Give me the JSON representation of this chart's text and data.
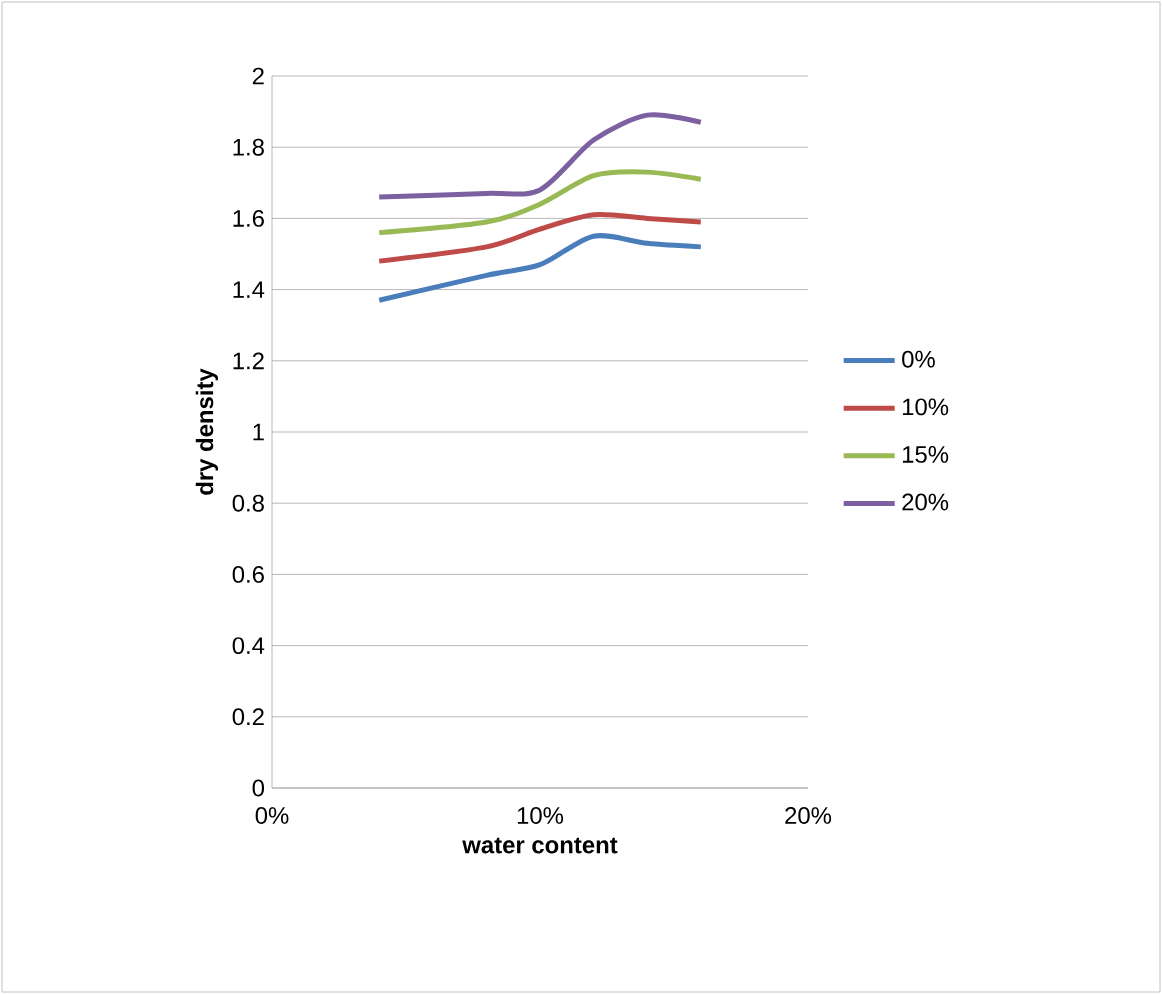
{
  "chart_data": {
    "type": "line",
    "xlabel": "water content",
    "ylabel": "dry density",
    "x": [
      4,
      8,
      10,
      12,
      14,
      16
    ],
    "xlim": [
      0,
      20
    ],
    "xticks": [
      {
        "value": 0,
        "label": "0%"
      },
      {
        "value": 10,
        "label": "10%"
      },
      {
        "value": 20,
        "label": "20%"
      }
    ],
    "ylim": [
      0,
      2
    ],
    "yticks": [
      0,
      0.2,
      0.4,
      0.6,
      0.8,
      1,
      1.2,
      1.4,
      1.6,
      1.8,
      2
    ],
    "grid": "y",
    "legend": "right",
    "marker": "none",
    "line_style": "solid",
    "series": [
      {
        "name": "0%",
        "color": "#4a7ebb",
        "values": [
          1.37,
          1.44,
          1.47,
          1.55,
          1.53,
          1.52
        ]
      },
      {
        "name": "10%",
        "color": "#be4b48",
        "values": [
          1.48,
          1.52,
          1.57,
          1.61,
          1.6,
          1.59
        ]
      },
      {
        "name": "15%",
        "color": "#98b954",
        "values": [
          1.56,
          1.59,
          1.64,
          1.72,
          1.73,
          1.71
        ]
      },
      {
        "name": "20%",
        "color": "#7d60a0",
        "values": [
          1.66,
          1.67,
          1.68,
          1.82,
          1.89,
          1.87
        ]
      }
    ]
  }
}
